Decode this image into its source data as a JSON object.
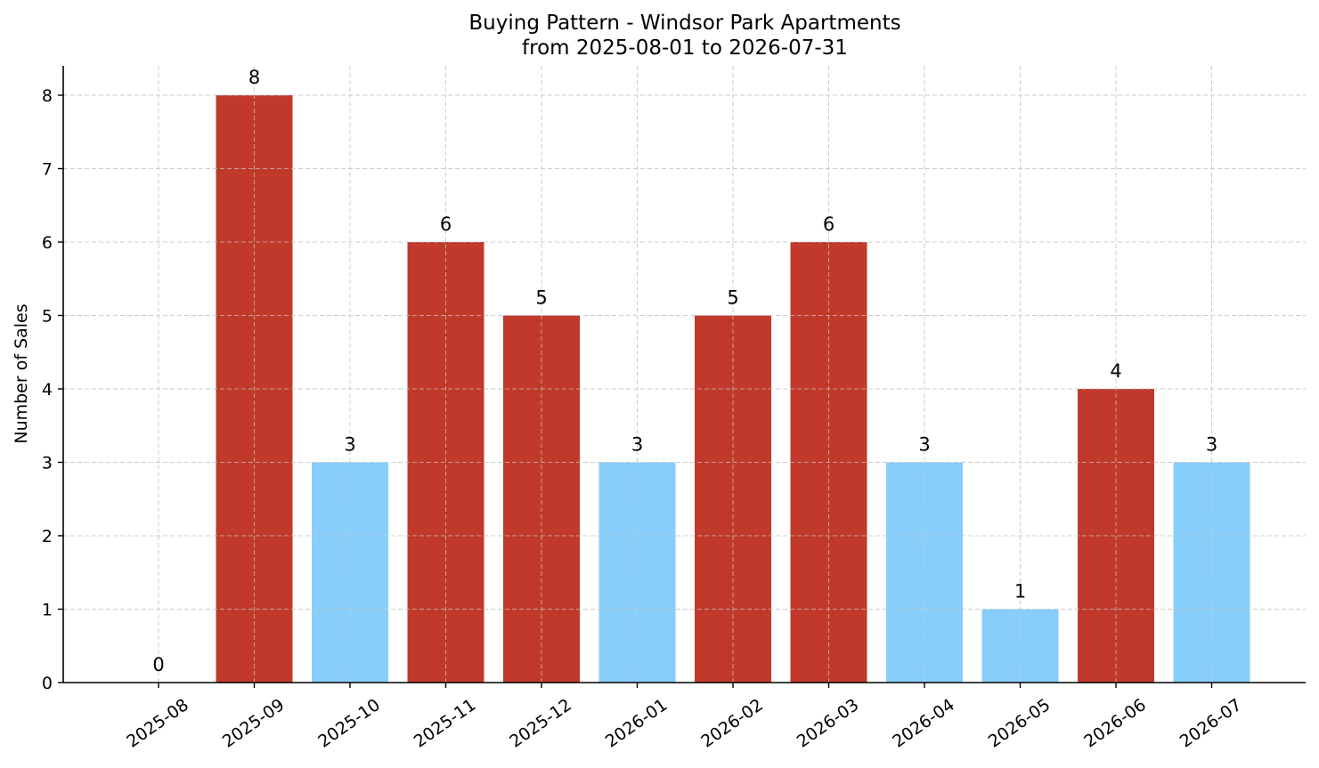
{
  "chart_data": {
    "type": "bar",
    "title": "Buying Pattern - Windsor Park Apartments",
    "subtitle": "from 2025-08-01 to 2026-07-31",
    "xlabel": "",
    "ylabel": "Number of Sales",
    "categories": [
      "2025-08",
      "2025-09",
      "2025-10",
      "2025-11",
      "2025-12",
      "2026-01",
      "2026-02",
      "2026-03",
      "2026-04",
      "2026-05",
      "2026-06",
      "2026-07"
    ],
    "values": [
      0,
      8,
      3,
      6,
      5,
      3,
      5,
      6,
      3,
      1,
      4,
      3
    ],
    "bar_colors": [
      "#c0392b",
      "#c0392b",
      "#87cefa",
      "#c0392b",
      "#c0392b",
      "#87cefa",
      "#c0392b",
      "#c0392b",
      "#87cefa",
      "#87cefa",
      "#c0392b",
      "#87cefa"
    ],
    "ylim": [
      0,
      8.4
    ],
    "yticks": [
      0,
      1,
      2,
      3,
      4,
      5,
      6,
      7,
      8
    ],
    "grid": true,
    "data_labels": true
  }
}
